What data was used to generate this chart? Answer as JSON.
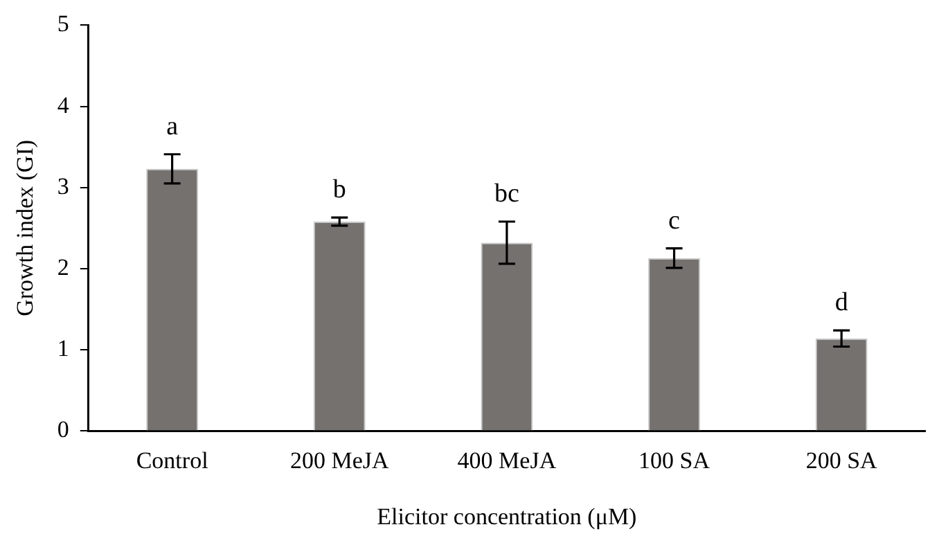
{
  "chart_data": {
    "type": "bar",
    "xlabel": "Elicitor concentration (μM)",
    "ylabel": "Growth index (GI)",
    "categories": [
      "Control",
      "200 MeJA",
      "400 MeJA",
      "100 SA",
      "200 SA"
    ],
    "values": [
      3.23,
      2.58,
      2.32,
      2.13,
      1.14
    ],
    "errors": [
      0.18,
      0.05,
      0.26,
      0.12,
      0.1
    ],
    "color": "#75716f",
    "ylim": [
      0,
      5
    ],
    "yticks": [
      0,
      1,
      2,
      3,
      4,
      5
    ],
    "grid": false,
    "legend": false,
    "annotations": [
      "a",
      "b",
      "bc",
      "c",
      "d"
    ]
  }
}
